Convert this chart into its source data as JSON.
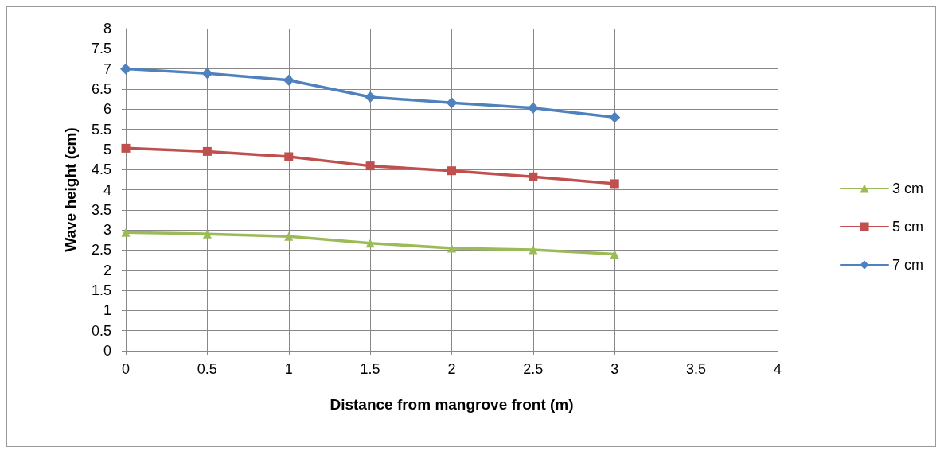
{
  "chart_data": {
    "type": "line",
    "xlabel": "Distance from mangrove front (m)",
    "ylabel": "Wave height (cm)",
    "x": [
      0,
      0.5,
      1,
      1.5,
      2,
      2.5,
      3
    ],
    "xlim": [
      0,
      4
    ],
    "xticks": [
      0,
      0.5,
      1,
      1.5,
      2,
      2.5,
      3,
      3.5,
      4
    ],
    "ylim": [
      0,
      8
    ],
    "yticks": [
      0,
      0.5,
      1,
      1.5,
      2,
      2.5,
      3,
      3.5,
      4,
      4.5,
      5,
      5.5,
      6,
      6.5,
      7,
      7.5,
      8
    ],
    "grid": true,
    "legend": "right",
    "line_style": "solid",
    "series": [
      {
        "name": "3 cm",
        "color": "#9bbb59",
        "marker": "triangle",
        "values": [
          2.94,
          2.9,
          2.84,
          2.67,
          2.55,
          2.51,
          2.4
        ]
      },
      {
        "name": "5 cm",
        "color": "#c0504d",
        "marker": "square",
        "values": [
          5.03,
          4.95,
          4.82,
          4.59,
          4.47,
          4.32,
          4.15
        ]
      },
      {
        "name": "7 cm",
        "color": "#4f81bd",
        "marker": "diamond",
        "values": [
          7.0,
          6.89,
          6.72,
          6.3,
          6.16,
          6.03,
          5.8
        ]
      }
    ]
  }
}
